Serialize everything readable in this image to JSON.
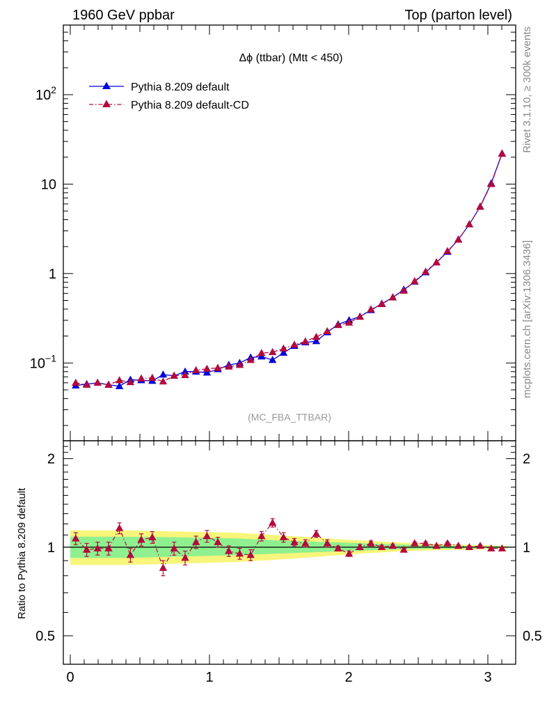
{
  "header": {
    "left": "1960 GeV ppbar",
    "right": "Top (parton level)"
  },
  "side_labels": {
    "rivet": "Rivet 3.1.10, ≥ 300k events",
    "mcplots": "mcplots.cern.ch [arXiv:1306.3436]"
  },
  "chart_data": [
    {
      "type": "line",
      "title": "Δϕ (ttbar) (Mtt < 450)",
      "annotation": "(MC_FBA_TTBAR)",
      "xlabel": "",
      "ylabel": "",
      "xlim": [
        -0.05,
        3.2
      ],
      "ylim": [
        0.0135,
        600
      ],
      "yscale": "log",
      "y_ticks": [
        {
          "value": 0.1,
          "base": "10",
          "exp": "−1"
        },
        {
          "value": 1,
          "base": "1",
          "exp": ""
        },
        {
          "value": 10,
          "base": "10",
          "exp": ""
        },
        {
          "value": 100,
          "base": "10",
          "exp": "2"
        }
      ],
      "legend_position": "top-left",
      "x": [
        0.039,
        0.118,
        0.196,
        0.275,
        0.353,
        0.432,
        0.51,
        0.589,
        0.667,
        0.746,
        0.825,
        0.903,
        0.982,
        1.06,
        1.139,
        1.217,
        1.296,
        1.374,
        1.453,
        1.532,
        1.61,
        1.689,
        1.767,
        1.846,
        1.924,
        2.003,
        2.081,
        2.16,
        2.238,
        2.317,
        2.396,
        2.474,
        2.553,
        2.631,
        2.71,
        2.788,
        2.867,
        2.945,
        3.024,
        3.102
      ],
      "series": [
        {
          "name": "Pythia 8.209 default",
          "color": "#0000dd",
          "line": "solid",
          "values": [
            0.056,
            0.058,
            0.06,
            0.057,
            0.055,
            0.065,
            0.064,
            0.063,
            0.074,
            0.072,
            0.08,
            0.08,
            0.078,
            0.085,
            0.095,
            0.1,
            0.115,
            0.118,
            0.108,
            0.13,
            0.155,
            0.17,
            0.175,
            0.22,
            0.27,
            0.3,
            0.33,
            0.39,
            0.46,
            0.54,
            0.66,
            0.81,
            1.03,
            1.33,
            1.75,
            2.4,
            3.55,
            5.6,
            10.2,
            22.0
          ]
        },
        {
          "name": "Pythia 8.209 default-CD",
          "color": "#b30a3c",
          "line": "dash-dot",
          "values": [
            0.06,
            0.057,
            0.06,
            0.057,
            0.064,
            0.061,
            0.067,
            0.068,
            0.062,
            0.072,
            0.073,
            0.083,
            0.086,
            0.088,
            0.091,
            0.095,
            0.108,
            0.129,
            0.132,
            0.145,
            0.16,
            0.174,
            0.195,
            0.226,
            0.265,
            0.282,
            0.328,
            0.398,
            0.455,
            0.54,
            0.642,
            0.82,
            1.05,
            1.33,
            1.78,
            2.39,
            3.54,
            5.57,
            10.0,
            21.8
          ]
        }
      ]
    },
    {
      "type": "line",
      "title": "",
      "xlabel": "",
      "ylabel": "Ratio to Pythia 8.209 default",
      "xlim": [
        -0.05,
        3.2
      ],
      "ylim": [
        0.4,
        2.3
      ],
      "yscale": "log",
      "y_ticks": [
        {
          "value": 0.5,
          "label": "0.5"
        },
        {
          "value": 1,
          "label": "1"
        },
        {
          "value": 2,
          "label": "2"
        }
      ],
      "x_ticks": [
        {
          "value": 0,
          "label": "0"
        },
        {
          "value": 1,
          "label": "1"
        },
        {
          "value": 2,
          "label": "2"
        },
        {
          "value": 3,
          "label": "3"
        }
      ],
      "reference_line": 1,
      "band_green": {
        "color": "#8ff08f",
        "x": [
          0.0,
          0.4,
          0.8,
          1.2,
          1.6,
          2.0,
          2.4,
          2.8,
          3.14
        ],
        "lower": [
          0.92,
          0.92,
          0.93,
          0.94,
          0.955,
          0.97,
          0.985,
          0.99,
          0.995
        ],
        "upper": [
          1.085,
          1.085,
          1.08,
          1.07,
          1.05,
          1.035,
          1.02,
          1.012,
          1.006
        ]
      },
      "band_yellow": {
        "color": "#f7f57a",
        "x": [
          0.0,
          0.4,
          0.8,
          1.2,
          1.6,
          2.0,
          2.4,
          2.8,
          3.14
        ],
        "lower": [
          0.87,
          0.87,
          0.88,
          0.89,
          0.915,
          0.945,
          0.97,
          0.98,
          0.99
        ],
        "upper": [
          1.14,
          1.14,
          1.13,
          1.12,
          1.09,
          1.06,
          1.035,
          1.02,
          1.01
        ]
      },
      "ratio": {
        "name": "Pythia 8.209 default-CD",
        "color": "#b30a3c",
        "values": [
          1.07,
          0.98,
          0.99,
          0.99,
          1.16,
          0.94,
          1.06,
          1.08,
          0.85,
          0.99,
          0.92,
          1.04,
          1.09,
          1.04,
          0.97,
          0.95,
          0.94,
          1.09,
          1.21,
          1.08,
          1.04,
          1.03,
          1.11,
          1.03,
          0.99,
          0.95,
          1.0,
          1.03,
          1.0,
          1.01,
          0.98,
          1.03,
          1.03,
          1.01,
          1.03,
          1.01,
          1.0,
          1.01,
          0.99,
          0.99
        ],
        "errors": [
          0.05,
          0.05,
          0.05,
          0.05,
          0.05,
          0.05,
          0.05,
          0.05,
          0.05,
          0.05,
          0.05,
          0.05,
          0.05,
          0.04,
          0.04,
          0.04,
          0.04,
          0.04,
          0.04,
          0.04,
          0.03,
          0.03,
          0.03,
          0.03,
          0.02,
          0.02,
          0.02,
          0.02,
          0.015,
          0.015,
          0.015,
          0.012,
          0.012,
          0.01,
          0.01,
          0.01,
          0.01,
          0.008,
          0.008,
          0.008
        ]
      }
    }
  ]
}
